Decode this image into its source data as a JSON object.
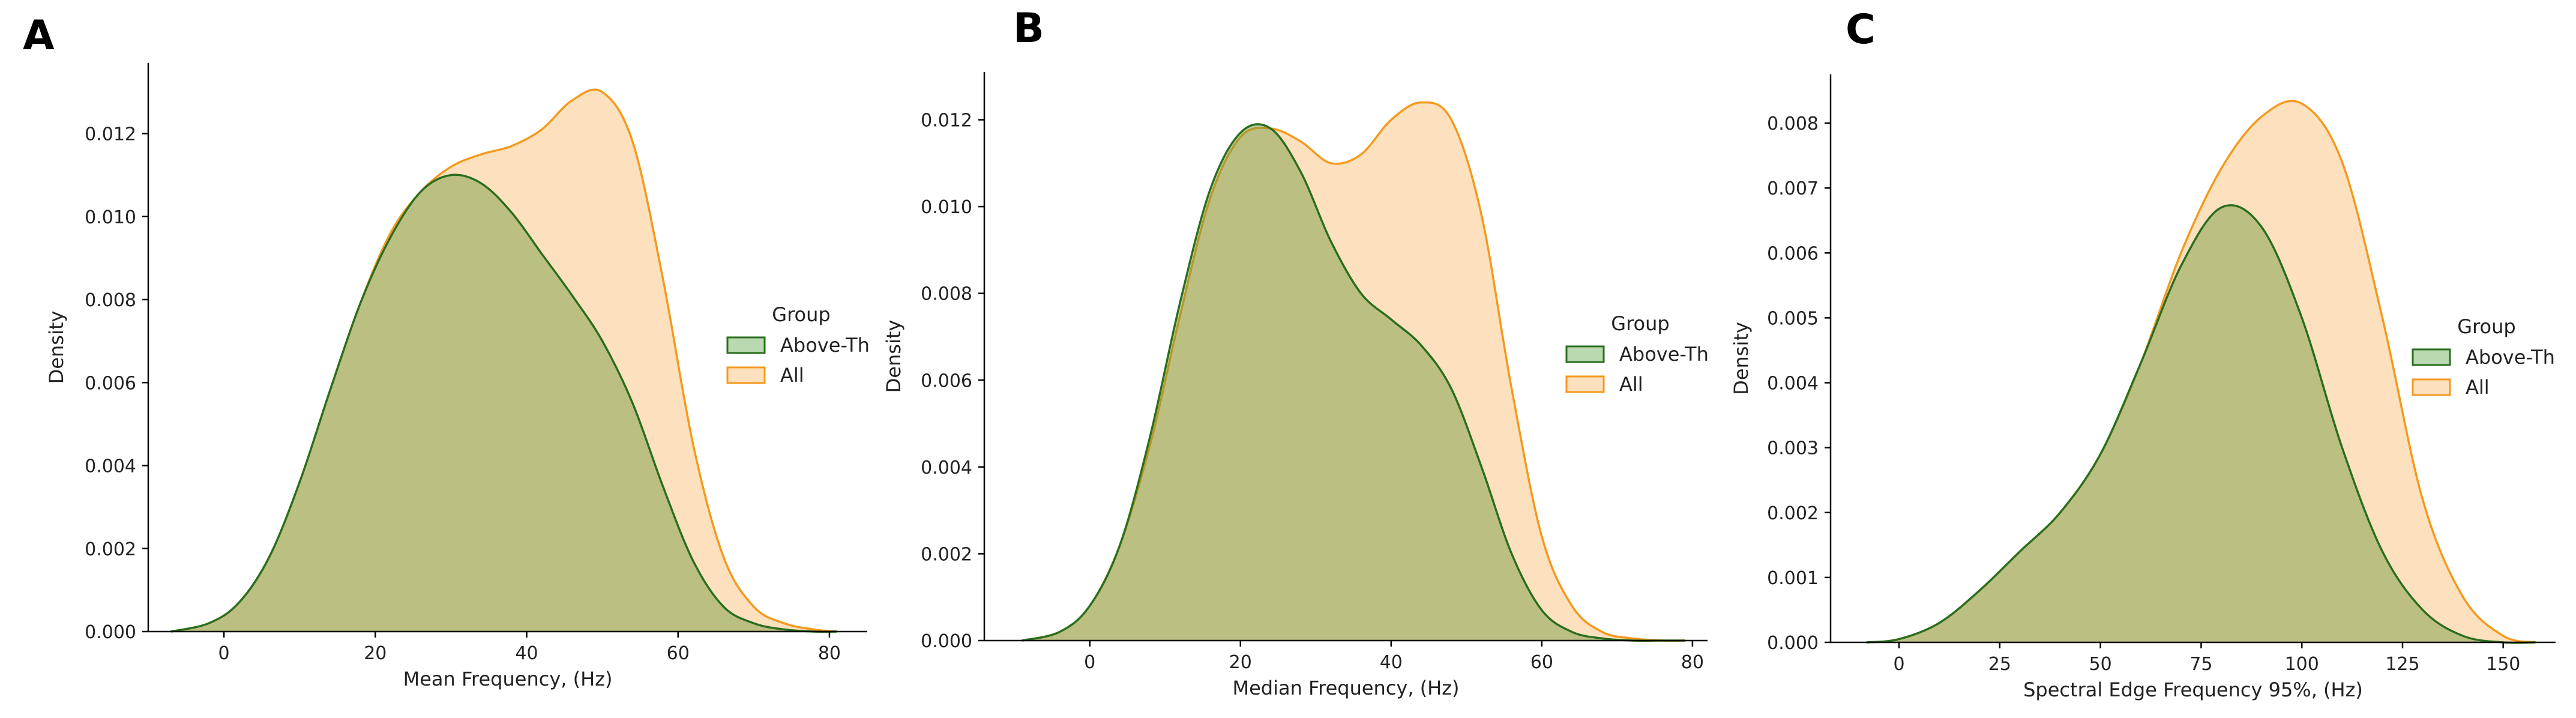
{
  "colors": {
    "above_fill": "#6a9a3a",
    "above_line": "#2a6e1e",
    "all_fill": "#fde0bd",
    "all_line": "#f39a1e",
    "axis": "#000000"
  },
  "chart_data": [
    {
      "type": "area",
      "panel_label": "A",
      "title": "",
      "xlabel": "Mean Frequency, (Hz)",
      "ylabel": "Density",
      "xlim": [
        -10,
        85
      ],
      "ylim": [
        0,
        0.0137
      ],
      "xticks": [
        0,
        20,
        40,
        60,
        80
      ],
      "yticks": [
        0.0,
        0.002,
        0.004,
        0.006,
        0.008,
        0.01,
        0.012
      ],
      "ytick_labels": [
        "0.000",
        "0.002",
        "0.004",
        "0.006",
        "0.008",
        "0.010",
        "0.012"
      ],
      "legend": {
        "title": "Group",
        "entries": [
          "Above-Th",
          "All"
        ],
        "placement": "center-right"
      },
      "series": [
        {
          "name": "All",
          "x": [
            -7,
            -2,
            2,
            6,
            10,
            14,
            18,
            22,
            26,
            30,
            34,
            38,
            42,
            46,
            50,
            54,
            58,
            62,
            66,
            70,
            74,
            78,
            81
          ],
          "y": [
            0.0,
            0.0002,
            0.0007,
            0.0018,
            0.0036,
            0.0058,
            0.0079,
            0.0096,
            0.0106,
            0.0112,
            0.0115,
            0.0117,
            0.0121,
            0.0128,
            0.013,
            0.0118,
            0.0085,
            0.0045,
            0.0018,
            0.0006,
            0.0002,
            5e-05,
            0.0
          ]
        },
        {
          "name": "Above-Th",
          "x": [
            -7,
            -2,
            2,
            6,
            10,
            14,
            18,
            22,
            26,
            30,
            34,
            38,
            42,
            46,
            50,
            54,
            58,
            62,
            66,
            70,
            74,
            78,
            81
          ],
          "y": [
            0.0,
            0.0002,
            0.0007,
            0.0018,
            0.0036,
            0.0058,
            0.0079,
            0.0095,
            0.0106,
            0.011,
            0.0108,
            0.0101,
            0.0091,
            0.0081,
            0.007,
            0.0055,
            0.0035,
            0.0017,
            0.0006,
            0.0002,
            5e-05,
            0.0,
            0.0
          ]
        }
      ]
    },
    {
      "type": "area",
      "panel_label": "B",
      "title": "",
      "xlabel": "Median Frequency, (Hz)",
      "ylabel": "Density",
      "xlim": [
        -14,
        82
      ],
      "ylim": [
        0,
        0.0131
      ],
      "xticks": [
        0,
        20,
        40,
        60,
        80
      ],
      "yticks": [
        0.0,
        0.002,
        0.004,
        0.006,
        0.008,
        0.01,
        0.012
      ],
      "ytick_labels": [
        "0.000",
        "0.002",
        "0.004",
        "0.006",
        "0.008",
        "0.010",
        "0.012"
      ],
      "legend": {
        "title": "Group",
        "entries": [
          "Above-Th",
          "All"
        ],
        "placement": "center-right"
      },
      "series": [
        {
          "name": "All",
          "x": [
            -9,
            -4,
            0,
            4,
            8,
            12,
            16,
            20,
            24,
            28,
            32,
            36,
            40,
            44,
            48,
            52,
            56,
            60,
            64,
            68,
            72,
            76,
            79
          ],
          "y": [
            0.0,
            0.0002,
            0.0008,
            0.0022,
            0.0045,
            0.0075,
            0.0102,
            0.0116,
            0.0118,
            0.0115,
            0.011,
            0.0112,
            0.012,
            0.0124,
            0.012,
            0.0098,
            0.0058,
            0.0024,
            0.0008,
            0.0002,
            5e-05,
            0.0,
            0.0
          ]
        },
        {
          "name": "Above-Th",
          "x": [
            -9,
            -4,
            0,
            4,
            8,
            12,
            16,
            20,
            24,
            28,
            32,
            36,
            40,
            44,
            48,
            52,
            56,
            60,
            64,
            68,
            72,
            76,
            79
          ],
          "y": [
            0.0,
            0.0002,
            0.0008,
            0.0022,
            0.0047,
            0.0078,
            0.0104,
            0.0117,
            0.0118,
            0.0108,
            0.0092,
            0.008,
            0.0074,
            0.0068,
            0.0058,
            0.004,
            0.002,
            0.0007,
            0.0002,
            5e-05,
            0.0,
            0.0,
            0.0
          ]
        }
      ]
    },
    {
      "type": "area",
      "panel_label": "C",
      "title": "",
      "xlabel": "Spectral Edge Frequency 95%, (Hz)",
      "ylabel": "Density",
      "xlim": [
        -17,
        163
      ],
      "ylim": [
        0,
        0.00875
      ],
      "xticks": [
        0,
        25,
        50,
        75,
        100,
        125,
        150
      ],
      "yticks": [
        0.0,
        0.001,
        0.002,
        0.003,
        0.004,
        0.005,
        0.006,
        0.007,
        0.008
      ],
      "ytick_labels": [
        "0.000",
        "0.001",
        "0.002",
        "0.003",
        "0.004",
        "0.005",
        "0.006",
        "0.007",
        "0.008"
      ],
      "legend": {
        "title": "Group",
        "entries": [
          "Above-Th",
          "All"
        ],
        "placement": "center-right"
      },
      "series": [
        {
          "name": "All",
          "x": [
            -8,
            0,
            10,
            20,
            30,
            40,
            50,
            60,
            70,
            80,
            90,
            100,
            110,
            120,
            130,
            140,
            150,
            158
          ],
          "y": [
            0.0,
            5e-05,
            0.0003,
            0.0008,
            0.0014,
            0.002,
            0.0029,
            0.0043,
            0.006,
            0.0073,
            0.0081,
            0.0083,
            0.0074,
            0.005,
            0.0022,
            0.0007,
            0.0001,
            0.0
          ]
        },
        {
          "name": "Above-Th",
          "x": [
            -8,
            0,
            10,
            20,
            30,
            40,
            50,
            60,
            70,
            80,
            90,
            100,
            110,
            120,
            130,
            140,
            150,
            158
          ],
          "y": [
            0.0,
            5e-05,
            0.0003,
            0.0008,
            0.0014,
            0.002,
            0.0029,
            0.0043,
            0.0058,
            0.0067,
            0.0064,
            0.005,
            0.003,
            0.0014,
            0.0005,
            0.0001,
            0.0,
            0.0
          ]
        }
      ]
    }
  ]
}
